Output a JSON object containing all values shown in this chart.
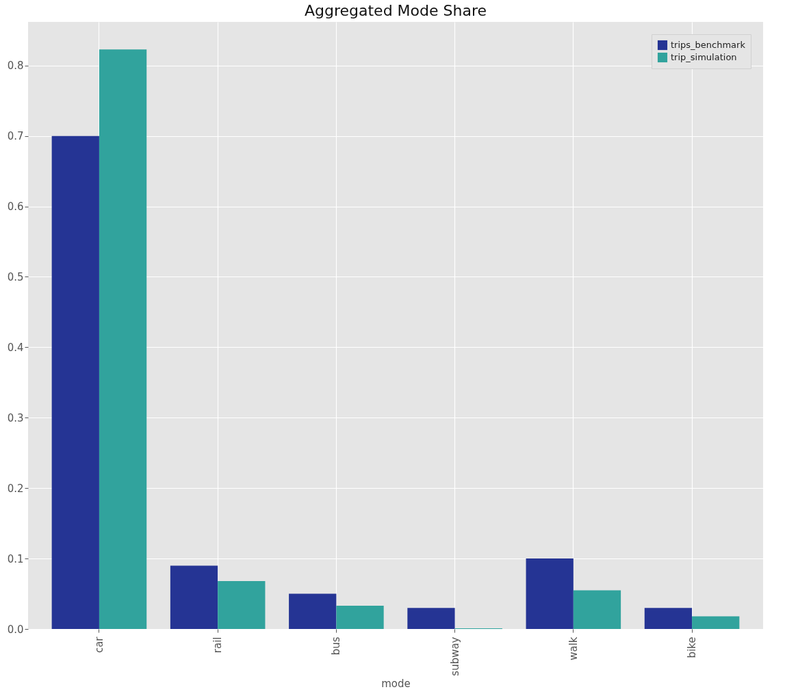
{
  "chart_data": {
    "type": "bar",
    "title": "Aggregated Mode Share",
    "xlabel": "mode",
    "categories": [
      "car",
      "rail",
      "bus",
      "subway",
      "walk",
      "bike"
    ],
    "series": [
      {
        "name": "trips_benchmark",
        "color": "#253494",
        "values": [
          0.7,
          0.09,
          0.05,
          0.03,
          0.1,
          0.03
        ]
      },
      {
        "name": "trip_simulation",
        "color": "#31a39d",
        "values": [
          0.823,
          0.068,
          0.033,
          0.001,
          0.055,
          0.018
        ]
      }
    ],
    "ylim": [
      0,
      0.862
    ],
    "yticks": [
      {
        "value": 0,
        "label": "0.0"
      },
      0.1,
      0.2,
      0.3,
      0.4,
      0.5,
      0.6,
      0.7,
      0.8
    ],
    "grid": true,
    "legend": "top right"
  }
}
